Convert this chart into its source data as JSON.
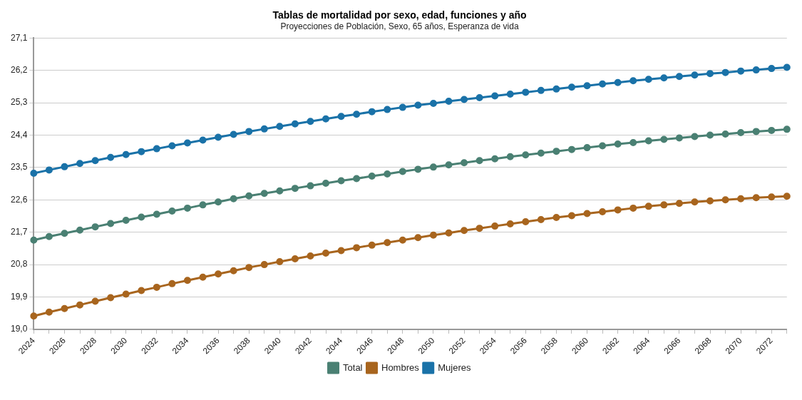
{
  "chart_data": {
    "type": "line",
    "title": "Tablas de mortalidad por sexo, edad, funciones y año",
    "subtitle": "Proyecciones de Población, Sexo, 65 años, Esperanza de vida",
    "categories": [
      "2024",
      null,
      "2026",
      null,
      "2028",
      null,
      "2030",
      null,
      "2032",
      null,
      "2034",
      null,
      "2036",
      null,
      "2038",
      null,
      "2040",
      null,
      "2042",
      null,
      "2044",
      null,
      "2046",
      null,
      "2048",
      null,
      "2050",
      null,
      "2052",
      null,
      "2054",
      null,
      "2056",
      null,
      "2058",
      null,
      "2060",
      null,
      "2062",
      null,
      "2064",
      null,
      "2066",
      null,
      "2068",
      null,
      "2070",
      null,
      "2072",
      null
    ],
    "series": [
      {
        "name": "Total",
        "color": "#4a8073",
        "values": [
          21.48,
          21.58,
          21.67,
          21.76,
          21.85,
          21.94,
          22.03,
          22.12,
          22.2,
          22.29,
          22.37,
          22.46,
          22.54,
          22.63,
          22.71,
          22.78,
          22.85,
          22.92,
          22.99,
          23.06,
          23.13,
          23.19,
          23.26,
          23.32,
          23.39,
          23.45,
          23.51,
          23.57,
          23.63,
          23.69,
          23.74,
          23.8,
          23.85,
          23.9,
          23.95,
          24.0,
          24.05,
          24.1,
          24.15,
          24.19,
          24.24,
          24.28,
          24.32,
          24.36,
          24.4,
          24.43,
          24.47,
          24.5,
          24.53,
          24.56
        ]
      },
      {
        "name": "Hombres",
        "color": "#a8651e",
        "values": [
          19.37,
          19.48,
          19.58,
          19.68,
          19.78,
          19.88,
          19.98,
          20.08,
          20.17,
          20.27,
          20.36,
          20.45,
          20.54,
          20.63,
          20.72,
          20.8,
          20.88,
          20.96,
          21.04,
          21.12,
          21.19,
          21.27,
          21.34,
          21.41,
          21.48,
          21.55,
          21.62,
          21.68,
          21.75,
          21.81,
          21.87,
          21.93,
          21.99,
          22.05,
          22.11,
          22.16,
          22.22,
          22.27,
          22.32,
          22.37,
          22.42,
          22.46,
          22.5,
          22.54,
          22.57,
          22.6,
          22.63,
          22.66,
          22.68,
          22.7
        ]
      },
      {
        "name": "Mujeres",
        "color": "#1a72a8",
        "values": [
          23.34,
          23.43,
          23.52,
          23.61,
          23.69,
          23.78,
          23.86,
          23.94,
          24.02,
          24.1,
          24.18,
          24.26,
          24.34,
          24.42,
          24.5,
          24.57,
          24.64,
          24.71,
          24.78,
          24.85,
          24.92,
          24.98,
          25.05,
          25.11,
          25.17,
          25.23,
          25.28,
          25.34,
          25.39,
          25.44,
          25.49,
          25.54,
          25.59,
          25.64,
          25.68,
          25.73,
          25.77,
          25.82,
          25.86,
          25.91,
          25.95,
          25.99,
          26.03,
          26.07,
          26.11,
          26.14,
          26.18,
          26.21,
          26.25,
          26.28
        ]
      }
    ],
    "ylim": [
      19.0,
      27.1
    ],
    "yticks": [
      {
        "value": 19.0,
        "label": "19,0"
      },
      {
        "value": 19.9,
        "label": "19,9"
      },
      {
        "value": 20.8,
        "label": "20,8"
      },
      {
        "value": 21.7,
        "label": "21,7"
      },
      {
        "value": 22.6,
        "label": "22,6"
      },
      {
        "value": 23.5,
        "label": "23,5"
      },
      {
        "value": 24.4,
        "label": "24,4"
      },
      {
        "value": 25.3,
        "label": "25,3"
      },
      {
        "value": 26.2,
        "label": "26,2"
      },
      {
        "value": 27.1,
        "label": "27,1"
      }
    ],
    "grid": "y",
    "legend": "bottom",
    "marker": "circle",
    "line_style": "solid"
  }
}
